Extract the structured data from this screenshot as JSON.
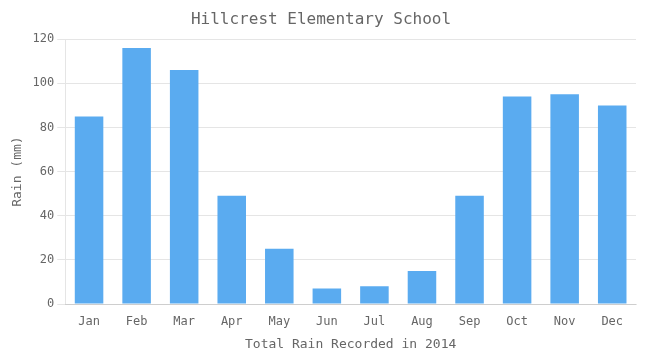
{
  "chart_data": {
    "type": "bar",
    "title": "Hillcrest Elementary School",
    "xlabel": "Total Rain Recorded in 2014",
    "ylabel": "Rain (mm)",
    "categories": [
      "Jan",
      "Feb",
      "Mar",
      "Apr",
      "May",
      "Jun",
      "Jul",
      "Aug",
      "Sep",
      "Oct",
      "Nov",
      "Dec"
    ],
    "values": [
      85,
      116,
      106,
      49,
      25,
      7,
      8,
      15,
      49,
      94,
      95,
      90
    ],
    "color": "#5AABF0",
    "ylim": [
      0,
      120
    ],
    "yticks": [
      0,
      20,
      40,
      60,
      80,
      100,
      120
    ],
    "grid": true
  }
}
